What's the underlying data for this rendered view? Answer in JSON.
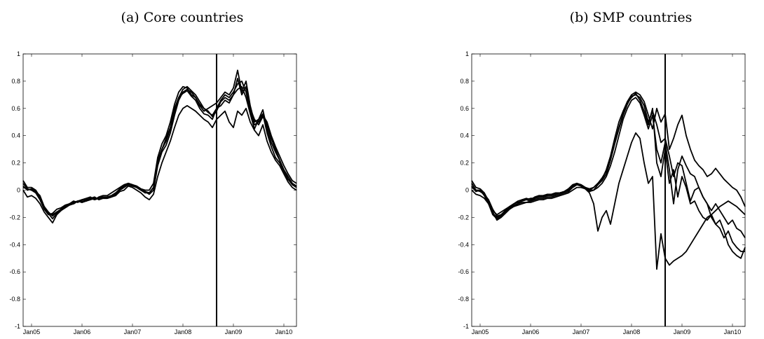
{
  "chart_data": [
    {
      "type": "line",
      "title": "(a) Core countries",
      "xlabel": "",
      "ylabel": "",
      "ylim": [
        -1,
        1
      ],
      "xlim": [
        "Nov04",
        "Apr10"
      ],
      "y_ticks": [
        "-1",
        "-0.8",
        "-0.6",
        "-0.4",
        "-0.2",
        "0",
        "0.2",
        "0.4",
        "0.6",
        "0.8",
        "1"
      ],
      "x_ticks": [
        {
          "label": "Jan05",
          "date": "Jan05"
        },
        {
          "label": "Jan06",
          "date": "Jan06"
        },
        {
          "label": "Jan07",
          "date": "Jan07"
        },
        {
          "label": "Jan08",
          "date": "Jan08"
        },
        {
          "label": "Jan09",
          "date": "Jan09"
        },
        {
          "label": "Jan10",
          "date": "Jan10"
        }
      ],
      "vline": "Sep08",
      "grid": false,
      "x": [
        "Nov04",
        "Dec04",
        "Jan05",
        "Feb05",
        "Mar05",
        "Apr05",
        "May05",
        "Jun05",
        "Jul05",
        "Aug05",
        "Sep05",
        "Oct05",
        "Nov05",
        "Dec05",
        "Jan06",
        "Feb06",
        "Mar06",
        "Apr06",
        "May06",
        "Jun06",
        "Jul06",
        "Aug06",
        "Sep06",
        "Oct06",
        "Nov06",
        "Dec06",
        "Jan07",
        "Feb07",
        "Mar07",
        "Apr07",
        "May07",
        "Jun07",
        "Jul07",
        "Aug07",
        "Sep07",
        "Oct07",
        "Nov07",
        "Dec07",
        "Jan08",
        "Feb08",
        "Mar08",
        "Apr08",
        "May08",
        "Jun08",
        "Jul08",
        "Aug08",
        "Sep08",
        "Oct08",
        "Nov08",
        "Dec08",
        "Jan09",
        "Feb09",
        "Mar09",
        "Apr09",
        "May09",
        "Jun09",
        "Jul09",
        "Aug09",
        "Sep09",
        "Oct09",
        "Nov09",
        "Dec09",
        "Jan10",
        "Feb10",
        "Mar10",
        "Apr10"
      ],
      "series": [
        {
          "values": [
            0.07,
            0.02,
            0.02,
            0.0,
            -0.05,
            -0.12,
            -0.16,
            -0.19,
            -0.16,
            -0.15,
            -0.12,
            -0.1,
            -0.09,
            -0.08,
            -0.09,
            -0.08,
            -0.06,
            -0.05,
            -0.07,
            -0.06,
            -0.06,
            -0.05,
            -0.03,
            0.0,
            0.03,
            0.05,
            0.04,
            0.02,
            0.0,
            -0.02,
            -0.02,
            0.02,
            0.2,
            0.3,
            0.36,
            0.45,
            0.58,
            0.68,
            0.74,
            0.76,
            0.73,
            0.7,
            0.65,
            0.6,
            0.57,
            0.55,
            0.6,
            0.66,
            0.7,
            0.68,
            0.72,
            0.78,
            0.8,
            0.72,
            0.58,
            0.48,
            0.5,
            0.55,
            0.5,
            0.4,
            0.32,
            0.25,
            0.18,
            0.12,
            0.07,
            0.05
          ]
        },
        {
          "values": [
            0.05,
            0.01,
            0.0,
            -0.02,
            -0.07,
            -0.14,
            -0.18,
            -0.17,
            -0.14,
            -0.13,
            -0.11,
            -0.1,
            -0.08,
            -0.09,
            -0.07,
            -0.06,
            -0.05,
            -0.07,
            -0.05,
            -0.04,
            -0.04,
            -0.02,
            0.0,
            0.02,
            0.04,
            0.05,
            0.04,
            0.03,
            0.01,
            0.0,
            0.0,
            0.05,
            0.24,
            0.34,
            0.4,
            0.5,
            0.63,
            0.72,
            0.76,
            0.75,
            0.7,
            0.68,
            0.62,
            0.58,
            0.6,
            0.62,
            0.64,
            0.68,
            0.72,
            0.7,
            0.75,
            0.88,
            0.72,
            0.8,
            0.62,
            0.5,
            0.52,
            0.59,
            0.45,
            0.35,
            0.28,
            0.22,
            0.15,
            0.1,
            0.05,
            0.03
          ]
        },
        {
          "values": [
            0.03,
            0.0,
            0.01,
            -0.01,
            -0.06,
            -0.13,
            -0.17,
            -0.21,
            -0.17,
            -0.14,
            -0.12,
            -0.1,
            -0.1,
            -0.08,
            -0.07,
            -0.07,
            -0.06,
            -0.06,
            -0.06,
            -0.05,
            -0.05,
            -0.04,
            -0.02,
            0.01,
            0.03,
            0.04,
            0.03,
            0.02,
            0.0,
            -0.01,
            -0.03,
            0.0,
            0.18,
            0.28,
            0.33,
            0.42,
            0.55,
            0.66,
            0.72,
            0.74,
            0.72,
            0.68,
            0.63,
            0.6,
            0.58,
            0.54,
            0.58,
            0.65,
            0.68,
            0.66,
            0.7,
            0.82,
            0.7,
            0.76,
            0.6,
            0.52,
            0.48,
            0.54,
            0.48,
            0.38,
            0.3,
            0.22,
            0.14,
            0.08,
            0.04,
            0.02
          ]
        },
        {
          "values": [
            0.02,
            0.01,
            0.0,
            -0.01,
            -0.04,
            -0.12,
            -0.17,
            -0.18,
            -0.16,
            -0.14,
            -0.12,
            -0.1,
            -0.09,
            -0.08,
            -0.08,
            -0.08,
            -0.07,
            -0.06,
            -0.06,
            -0.05,
            -0.05,
            -0.04,
            -0.02,
            0.0,
            0.02,
            0.04,
            0.04,
            0.02,
            0.0,
            -0.01,
            -0.02,
            0.02,
            0.22,
            0.3,
            0.38,
            0.46,
            0.6,
            0.68,
            0.71,
            0.73,
            0.69,
            0.66,
            0.6,
            0.56,
            0.55,
            0.52,
            0.6,
            0.62,
            0.66,
            0.64,
            0.7,
            0.74,
            0.76,
            0.68,
            0.56,
            0.45,
            0.52,
            0.56,
            0.42,
            0.32,
            0.24,
            0.2,
            0.14,
            0.08,
            0.05,
            0.02
          ]
        },
        {
          "values": [
            0.0,
            -0.05,
            -0.04,
            -0.06,
            -0.1,
            -0.16,
            -0.2,
            -0.24,
            -0.18,
            -0.15,
            -0.13,
            -0.11,
            -0.1,
            -0.08,
            -0.09,
            -0.07,
            -0.06,
            -0.07,
            -0.06,
            -0.05,
            -0.06,
            -0.05,
            -0.04,
            -0.01,
            0.0,
            0.03,
            0.02,
            0.0,
            -0.02,
            -0.05,
            -0.07,
            -0.03,
            0.1,
            0.2,
            0.28,
            0.36,
            0.46,
            0.55,
            0.6,
            0.62,
            0.6,
            0.58,
            0.55,
            0.52,
            0.5,
            0.46,
            0.52,
            0.55,
            0.58,
            0.5,
            0.46,
            0.58,
            0.55,
            0.6,
            0.5,
            0.44,
            0.4,
            0.48,
            0.36,
            0.28,
            0.22,
            0.18,
            0.12,
            0.06,
            0.02,
            0.0
          ]
        }
      ]
    },
    {
      "type": "line",
      "title": "(b) SMP countries",
      "xlabel": "",
      "ylabel": "",
      "ylim": [
        -1,
        1
      ],
      "xlim": [
        "Nov04",
        "Apr10"
      ],
      "y_ticks": [
        "-1",
        "-0.8",
        "-0.6",
        "-0.4",
        "-0.2",
        "0",
        "0.2",
        "0.4",
        "0.6",
        "0.8",
        "1"
      ],
      "x_ticks": [
        {
          "label": "Jan05",
          "date": "Jan05"
        },
        {
          "label": "Jan06",
          "date": "Jan06"
        },
        {
          "label": "Jan07",
          "date": "Jan07"
        },
        {
          "label": "Jan08",
          "date": "Jan08"
        },
        {
          "label": "Jan09",
          "date": "Jan09"
        },
        {
          "label": "Jan10",
          "date": "Jan10"
        }
      ],
      "vline": "Sep08",
      "grid": false,
      "x": [
        "Nov04",
        "Dec04",
        "Jan05",
        "Feb05",
        "Mar05",
        "Apr05",
        "May05",
        "Jun05",
        "Jul05",
        "Aug05",
        "Sep05",
        "Oct05",
        "Nov05",
        "Dec05",
        "Jan06",
        "Feb06",
        "Mar06",
        "Apr06",
        "May06",
        "Jun06",
        "Jul06",
        "Aug06",
        "Sep06",
        "Oct06",
        "Nov06",
        "Dec06",
        "Jan07",
        "Feb07",
        "Mar07",
        "Apr07",
        "May07",
        "Jun07",
        "Jul07",
        "Aug07",
        "Sep07",
        "Oct07",
        "Nov07",
        "Dec07",
        "Jan08",
        "Feb08",
        "Mar08",
        "Apr08",
        "May08",
        "Jun08",
        "Jul08",
        "Aug08",
        "Sep08",
        "Oct08",
        "Nov08",
        "Dec08",
        "Jan09",
        "Feb09",
        "Mar09",
        "Apr09",
        "May09",
        "Jun09",
        "Jul09",
        "Aug09",
        "Sep09",
        "Oct09",
        "Nov09",
        "Dec09",
        "Jan10",
        "Feb10",
        "Mar10",
        "Apr10"
      ],
      "series": [
        {
          "values": [
            0.07,
            0.02,
            0.01,
            -0.02,
            -0.08,
            -0.15,
            -0.18,
            -0.16,
            -0.14,
            -0.12,
            -0.1,
            -0.09,
            -0.08,
            -0.07,
            -0.08,
            -0.06,
            -0.05,
            -0.05,
            -0.04,
            -0.04,
            -0.03,
            -0.02,
            -0.01,
            0.0,
            0.03,
            0.05,
            0.04,
            0.02,
            0.0,
            0.02,
            0.05,
            0.08,
            0.15,
            0.25,
            0.38,
            0.5,
            0.58,
            0.65,
            0.7,
            0.72,
            0.7,
            0.65,
            0.55,
            0.45,
            0.6,
            0.5,
            0.56,
            0.3,
            0.38,
            0.48,
            0.55,
            0.4,
            0.3,
            0.22,
            0.18,
            0.15,
            0.1,
            0.12,
            0.16,
            0.12,
            0.08,
            0.05,
            0.02,
            0.0,
            -0.05,
            -0.12
          ]
        },
        {
          "values": [
            0.05,
            0.0,
            0.0,
            -0.04,
            -0.1,
            -0.17,
            -0.2,
            -0.18,
            -0.15,
            -0.13,
            -0.11,
            -0.1,
            -0.07,
            -0.06,
            -0.07,
            -0.05,
            -0.04,
            -0.05,
            -0.03,
            -0.03,
            -0.02,
            -0.02,
            -0.01,
            0.01,
            0.04,
            0.05,
            0.03,
            0.02,
            0.0,
            0.0,
            0.04,
            0.07,
            0.12,
            0.22,
            0.34,
            0.45,
            0.55,
            0.63,
            0.69,
            0.7,
            0.68,
            0.62,
            0.5,
            0.58,
            0.48,
            0.35,
            0.38,
            0.25,
            0.1,
            0.2,
            0.18,
            0.05,
            -0.08,
            0.0,
            0.02,
            -0.05,
            -0.1,
            -0.15,
            -0.1,
            -0.15,
            -0.2,
            -0.25,
            -0.22,
            -0.28,
            -0.3,
            -0.35
          ]
        },
        {
          "values": [
            0.03,
            -0.01,
            0.0,
            -0.03,
            -0.08,
            -0.16,
            -0.22,
            -0.2,
            -0.17,
            -0.14,
            -0.12,
            -0.1,
            -0.09,
            -0.09,
            -0.08,
            -0.07,
            -0.06,
            -0.06,
            -0.05,
            -0.05,
            -0.04,
            -0.03,
            -0.02,
            -0.01,
            0.02,
            0.04,
            0.03,
            0.01,
            -0.01,
            0.0,
            0.02,
            0.05,
            0.1,
            0.18,
            0.28,
            0.4,
            0.52,
            0.6,
            0.66,
            0.68,
            0.64,
            0.55,
            0.45,
            0.55,
            0.3,
            0.2,
            0.35,
            0.15,
            -0.1,
            0.15,
            0.25,
            0.18,
            0.12,
            0.1,
            0.02,
            -0.05,
            -0.1,
            -0.2,
            -0.25,
            -0.22,
            -0.3,
            -0.4,
            -0.45,
            -0.48,
            -0.5,
            -0.42
          ]
        },
        {
          "values": [
            0.02,
            0.0,
            -0.01,
            -0.03,
            -0.07,
            -0.14,
            -0.19,
            -0.18,
            -0.15,
            -0.12,
            -0.1,
            -0.08,
            -0.07,
            -0.07,
            -0.06,
            -0.06,
            -0.04,
            -0.04,
            -0.03,
            -0.03,
            -0.02,
            -0.02,
            -0.01,
            0.0,
            0.02,
            0.04,
            0.04,
            0.02,
            0.01,
            0.02,
            0.05,
            0.09,
            0.14,
            0.24,
            0.35,
            0.46,
            0.56,
            0.64,
            0.68,
            0.71,
            0.66,
            0.58,
            0.48,
            0.6,
            0.2,
            0.1,
            0.3,
            0.05,
            0.15,
            -0.05,
            0.1,
            0.02,
            -0.1,
            -0.08,
            -0.15,
            -0.2,
            -0.22,
            -0.18,
            -0.25,
            -0.28,
            -0.35,
            -0.3,
            -0.38,
            -0.42,
            -0.45,
            -0.45
          ]
        },
        {
          "values": [
            0.0,
            -0.03,
            -0.04,
            -0.06,
            -0.1,
            -0.18,
            -0.21,
            -0.19,
            -0.16,
            -0.13,
            -0.12,
            -0.11,
            -0.1,
            -0.09,
            -0.09,
            -0.08,
            -0.07,
            -0.07,
            -0.06,
            -0.06,
            -0.05,
            -0.04,
            -0.03,
            -0.02,
            0.0,
            0.02,
            0.02,
            0.01,
            -0.02,
            -0.1,
            -0.3,
            -0.2,
            -0.15,
            -0.25,
            -0.1,
            0.05,
            0.15,
            0.25,
            0.35,
            0.42,
            0.38,
            0.2,
            0.05,
            0.1,
            -0.58,
            -0.32,
            -0.5,
            -0.55,
            -0.52,
            -0.5,
            -0.48,
            -0.45,
            -0.4,
            -0.35,
            -0.3,
            -0.25,
            -0.2,
            -0.18,
            -0.15,
            -0.12,
            -0.1,
            -0.08,
            -0.1,
            -0.12,
            -0.15,
            -0.18
          ]
        }
      ]
    }
  ]
}
